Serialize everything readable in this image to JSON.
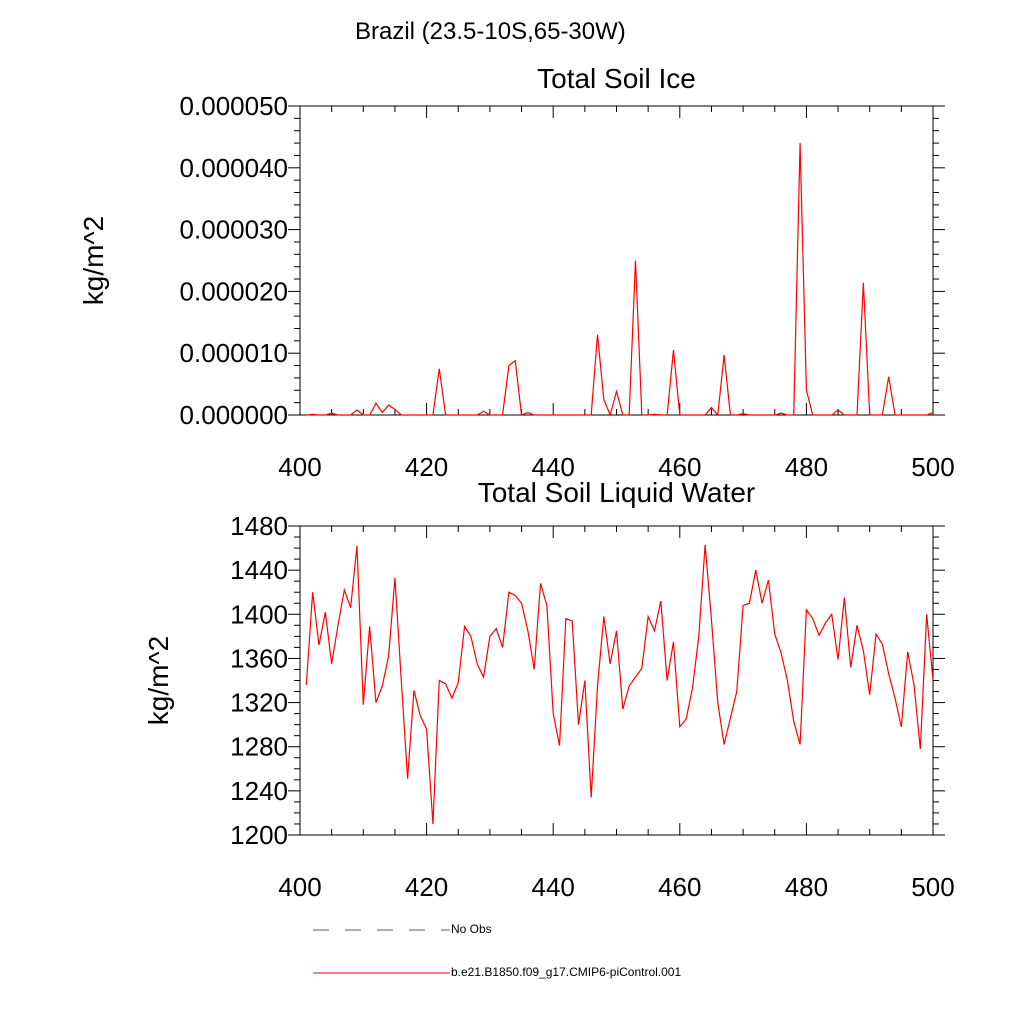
{
  "page_title": "Brazil (23.5-10S,65-30W)",
  "legend": {
    "items": [
      {
        "label": "No Obs",
        "style": "dashed",
        "color": "#4b5a8c"
      },
      {
        "label": "b.e21.B1850.f09_g17.CMIP6-piControl.001",
        "style": "solid",
        "color": "#ff0000"
      }
    ]
  },
  "chart_data": [
    {
      "type": "line",
      "title": "Total Soil Ice",
      "xlabel": "",
      "ylabel": "kg/m^2",
      "xlim": [
        400,
        500
      ],
      "ylim": [
        0,
        5e-05
      ],
      "x_ticks": [
        "400",
        "420",
        "440",
        "460",
        "480",
        "500"
      ],
      "y_ticks": [
        "0.000000",
        "0.000010",
        "0.000020",
        "0.000030",
        "0.000040",
        "0.000050"
      ],
      "grid": false,
      "series": [
        {
          "color": "#ff0000",
          "x": [
            401,
            402,
            403,
            404,
            405,
            406,
            407,
            408,
            409,
            410,
            411,
            412,
            413,
            414,
            415,
            416,
            417,
            418,
            419,
            420,
            421,
            422,
            423,
            424,
            425,
            426,
            427,
            428,
            429,
            430,
            431,
            432,
            433,
            434,
            435,
            436,
            437,
            438,
            439,
            440,
            441,
            442,
            443,
            444,
            445,
            446,
            447,
            448,
            449,
            450,
            451,
            452,
            453,
            454,
            455,
            456,
            457,
            458,
            459,
            460,
            461,
            462,
            463,
            464,
            465,
            466,
            467,
            468,
            469,
            470,
            471,
            472,
            473,
            474,
            475,
            476,
            477,
            478,
            479,
            480,
            481,
            482,
            483,
            484,
            485,
            486,
            487,
            488,
            489,
            490,
            491,
            492,
            493,
            494,
            495,
            496,
            497,
            498,
            499,
            500
          ],
          "values": [
            0,
            1e-07,
            0,
            0,
            3e-07,
            0,
            0,
            0,
            8e-07,
            0,
            0,
            1.9e-06,
            4e-07,
            1.6e-06,
            9e-07,
            0,
            0,
            0,
            0,
            0,
            0,
            7.5e-06,
            0,
            0,
            0,
            0,
            0,
            0,
            6e-07,
            0,
            0,
            0,
            8e-06,
            8.8e-06,
            0,
            4e-07,
            0,
            0,
            0,
            0,
            0,
            0,
            0,
            0,
            0,
            0,
            1.3e-05,
            2.5e-06,
            0,
            3.8e-06,
            0,
            0,
            2.5e-05,
            0,
            0,
            1e-07,
            0,
            0,
            1.05e-05,
            0,
            0,
            0,
            0,
            0,
            1.2e-06,
            0,
            9.7e-06,
            0,
            0,
            2e-07,
            0,
            0,
            0,
            0,
            0,
            3e-07,
            0,
            0,
            4.4e-05,
            4e-06,
            0,
            0,
            0,
            0,
            8e-07,
            0,
            0,
            0,
            2.14e-05,
            0,
            0,
            0,
            6.2e-06,
            0,
            0,
            0,
            0,
            0,
            0,
            4e-07
          ]
        }
      ]
    },
    {
      "type": "line",
      "title": "Total Soil Liquid Water",
      "xlabel": "",
      "ylabel": "kg/m^2",
      "xlim": [
        400,
        500
      ],
      "ylim": [
        1200,
        1480
      ],
      "x_ticks": [
        "400",
        "420",
        "440",
        "460",
        "480",
        "500"
      ],
      "y_ticks": [
        "1200",
        "1240",
        "1280",
        "1320",
        "1360",
        "1400",
        "1440",
        "1480"
      ],
      "grid": false,
      "series": [
        {
          "color": "#ff0000",
          "x": [
            401,
            402,
            403,
            404,
            405,
            406,
            407,
            408,
            409,
            410,
            411,
            412,
            413,
            414,
            415,
            416,
            417,
            418,
            419,
            420,
            421,
            422,
            423,
            424,
            425,
            426,
            427,
            428,
            429,
            430,
            431,
            432,
            433,
            434,
            435,
            436,
            437,
            438,
            439,
            440,
            441,
            442,
            443,
            444,
            445,
            446,
            447,
            448,
            449,
            450,
            451,
            452,
            453,
            454,
            455,
            456,
            457,
            458,
            459,
            460,
            461,
            462,
            463,
            464,
            465,
            466,
            467,
            468,
            469,
            470,
            471,
            472,
            473,
            474,
            475,
            476,
            477,
            478,
            479,
            480,
            481,
            482,
            483,
            484,
            485,
            486,
            487,
            488,
            489,
            490,
            491,
            492,
            493,
            494,
            495,
            496,
            497,
            498,
            499,
            500
          ],
          "values": [
            1336,
            1420,
            1372,
            1402,
            1355,
            1390,
            1422,
            1406,
            1462,
            1318,
            1389,
            1320,
            1335,
            1362,
            1433,
            1340,
            1251,
            1331,
            1308,
            1296,
            1210,
            1340,
            1337,
            1324,
            1338,
            1389,
            1380,
            1355,
            1343,
            1380,
            1387,
            1370,
            1420,
            1417,
            1410,
            1385,
            1350,
            1428,
            1408,
            1310,
            1281,
            1396,
            1394,
            1300,
            1340,
            1234,
            1335,
            1398,
            1355,
            1385,
            1314,
            1335,
            1343,
            1351,
            1398,
            1385,
            1412,
            1340,
            1375,
            1298,
            1305,
            1333,
            1380,
            1463,
            1395,
            1320,
            1282,
            1306,
            1330,
            1408,
            1410,
            1440,
            1410,
            1431,
            1382,
            1365,
            1340,
            1303,
            1282,
            1404,
            1396,
            1381,
            1392,
            1400,
            1359,
            1415,
            1352,
            1390,
            1367,
            1327,
            1382,
            1373,
            1346,
            1324,
            1298,
            1366,
            1336,
            1278,
            1400,
            1340
          ]
        }
      ]
    }
  ]
}
